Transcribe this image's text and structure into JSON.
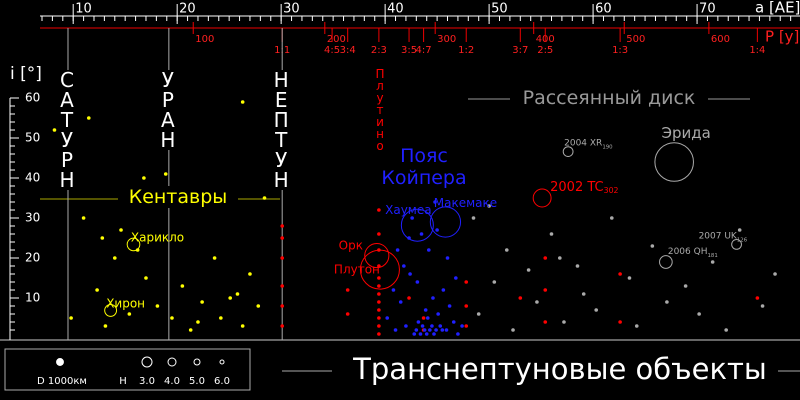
{
  "chart_data": {
    "type": "scatter",
    "title": "Транснептуновые объекты",
    "x_label": "a [AE]",
    "y_label": "i [°]",
    "p_label": "P [y]",
    "xlim": [
      7,
      79.9
    ],
    "xticks": [
      10,
      20,
      30,
      40,
      50,
      60,
      70
    ],
    "ylim": [
      0,
      62
    ],
    "yticks": [
      10,
      20,
      30,
      40,
      50,
      60
    ],
    "pticks": [
      100,
      200,
      300,
      400,
      500,
      600
    ],
    "planets": [
      {
        "name": "САТУРН",
        "a": 9.5
      },
      {
        "name": "УРАН",
        "a": 19.2
      },
      {
        "name": "НЕПТУН",
        "a": 30.1
      }
    ],
    "resonances": [
      {
        "label": "1:1",
        "a": 30.1
      },
      {
        "label": "4:5",
        "a": 34.9
      },
      {
        "label": "3:4",
        "a": 36.4
      },
      {
        "label": "2:3",
        "a": 39.4
      },
      {
        "label": "3:5",
        "a": 42.3
      },
      {
        "label": "4:7",
        "a": 43.7
      },
      {
        "label": "1:2",
        "a": 47.8
      },
      {
        "label": "3:7",
        "a": 53.0
      },
      {
        "label": "2:5",
        "a": 55.4
      },
      {
        "label": "1:3",
        "a": 62.6
      },
      {
        "label": "1:4",
        "a": 75.8
      }
    ],
    "series": [
      {
        "name": "Кентавры",
        "color": "#ffff00",
        "x": [
          8.2,
          9.8,
          11.5,
          12.3,
          13.1,
          14.6,
          15.4,
          16.2,
          17.0,
          18.1,
          18.9,
          20.5,
          21.3,
          22.4,
          23.6,
          24.2,
          25.1,
          26.3,
          27.0,
          27.8,
          11.0,
          14.0,
          19.5,
          22.0,
          25.8,
          16.8,
          12.8,
          28.4,
          26.3
        ],
        "values": [
          52,
          5,
          55,
          12,
          3,
          27,
          6,
          22,
          15,
          8,
          41,
          13,
          2,
          9,
          20,
          5,
          10,
          3,
          16,
          8,
          30,
          20,
          5,
          4,
          11,
          40,
          25,
          35,
          59
        ]
      },
      {
        "name": "Плутино",
        "color": "#ff0000",
        "x": [
          30.1,
          30.1,
          30.1,
          30.1,
          30.1,
          30.1,
          36.4,
          36.4,
          39.4,
          39.4,
          39.4,
          39.4,
          39.4,
          39.4,
          39.4,
          39.4,
          39.4,
          39.4,
          39.4,
          39.4,
          42.3,
          43.7,
          43.7,
          47.8,
          47.8,
          47.8,
          53.0,
          55.4,
          55.4,
          55.4,
          62.6,
          62.6,
          75.8
        ],
        "values": [
          3,
          8,
          13,
          25,
          20,
          28,
          6,
          12,
          1,
          3,
          5,
          7,
          9,
          11,
          13,
          15,
          18,
          22,
          26,
          32,
          10,
          2,
          5,
          3,
          8,
          14,
          10,
          4,
          12,
          20,
          4,
          16,
          10
        ]
      },
      {
        "name": "Пояс Койпера",
        "color": "#2020ff",
        "x": [
          40.2,
          41.0,
          41.5,
          42.0,
          42.3,
          42.8,
          43.0,
          43.2,
          43.4,
          43.6,
          43.8,
          44.0,
          44.1,
          44.3,
          44.5,
          44.7,
          44.9,
          45.1,
          45.3,
          45.6,
          45.9,
          46.2,
          46.6,
          47.0,
          47.4,
          41.8,
          42.6,
          43.1,
          44.2,
          45.0,
          46.0,
          43.9,
          44.6,
          42.4,
          45.5,
          41.2,
          40.8,
          46.8,
          43.5,
          44.8
        ],
        "values": [
          5,
          2,
          9,
          3,
          25,
          1,
          2,
          4,
          1,
          3,
          2,
          1,
          5,
          2,
          3,
          1,
          2,
          6,
          3,
          12,
          2,
          8,
          4,
          1,
          3,
          18,
          30,
          14,
          22,
          27,
          20,
          7,
          10,
          16,
          2,
          22,
          12,
          15,
          26,
          34
        ]
      },
      {
        "name": "Рассеянный диск",
        "color": "#aaaaaa",
        "x": [
          49,
          50.5,
          51.7,
          52.3,
          53.8,
          54.6,
          56,
          57.2,
          58.5,
          59.1,
          60.3,
          61.8,
          63.5,
          64.2,
          65.7,
          67.1,
          68.9,
          70.2,
          71.5,
          72.8,
          74.1,
          76.3,
          77.5,
          48.5,
          50,
          56.8
        ],
        "values": [
          6,
          14,
          22,
          2,
          17,
          9,
          26,
          4,
          18,
          11,
          7,
          30,
          15,
          3,
          23,
          9,
          13,
          6,
          19,
          2,
          27,
          8,
          16,
          30,
          33,
          20
        ]
      }
    ],
    "objects": [
      {
        "name": "Эрида",
        "a": 67.8,
        "i": 44,
        "d": 2326,
        "color": "#aaaaaa"
      },
      {
        "name": "Плутон",
        "a": 39.5,
        "i": 17.1,
        "d": 2377,
        "color": "#ff0000"
      },
      {
        "name": "Орк",
        "a": 39.2,
        "i": 20.6,
        "d": 910,
        "color": "#ff0000"
      },
      {
        "name": "Хаумеа",
        "a": 43.1,
        "i": 28.2,
        "d": 1600,
        "color": "#2020ff"
      },
      {
        "name": "Макемаке",
        "a": 45.8,
        "i": 29,
        "d": 1430,
        "color": "#2020ff"
      },
      {
        "name": "2002 TC",
        "sub": "302",
        "a": 55.1,
        "i": 35,
        "d": 500,
        "color": "#ff0000"
      },
      {
        "name": "2004 XR",
        "sub": "190",
        "a": 57.6,
        "i": 46.6,
        "d": 150,
        "color": "#aaaaaa"
      },
      {
        "name": "2007 UK",
        "sub": "126",
        "a": 73.8,
        "i": 23.4,
        "d": 150,
        "color": "#aaaaaa"
      },
      {
        "name": "2006 QH",
        "sub": "181",
        "a": 67,
        "i": 19,
        "d": 250,
        "color": "#aaaaaa"
      },
      {
        "name": "Харикло",
        "a": 15.8,
        "i": 23.4,
        "d": 250,
        "color": "#ffff00"
      },
      {
        "name": "Хирон",
        "a": 13.6,
        "i": 6.9,
        "d": 220,
        "color": "#ffff00"
      }
    ],
    "legend": {
      "diameter": {
        "value": 1000,
        "label": "D 1000км"
      },
      "h_label": "H",
      "h_values": [
        {
          "value": 3,
          "label": "3.0"
        },
        {
          "value": 4,
          "label": "4.0"
        },
        {
          "value": 5,
          "label": "5.0"
        },
        {
          "value": 6,
          "label": "6.0"
        }
      ]
    }
  }
}
